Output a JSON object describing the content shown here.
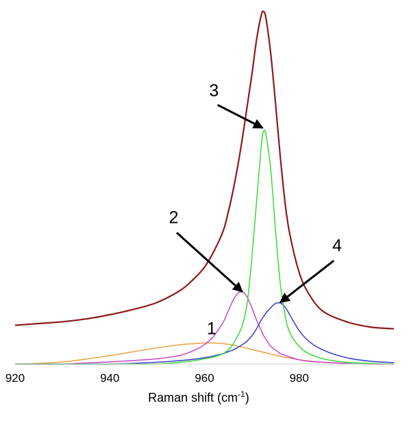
{
  "chart_data": {
    "type": "line",
    "xlabel": "Raman shift (cm",
    "xlabel_sup": "-1",
    "xlabel_close": ")",
    "xlim": [
      920,
      1000
    ],
    "ylim": [
      0,
      1
    ],
    "xticks": [
      920,
      940,
      960,
      980
    ],
    "grid": false,
    "legend": "none",
    "x": [
      920,
      925,
      930,
      935,
      940,
      945,
      950,
      955,
      958,
      960,
      962,
      964,
      965,
      966,
      967,
      968,
      969,
      970,
      971,
      972,
      972.5,
      973,
      974,
      975,
      976,
      977,
      978,
      980,
      982,
      985,
      990,
      995,
      1000
    ],
    "series": [
      {
        "color": "#8b1a1a",
        "values": [
          0.11,
          0.115,
          0.12,
          0.128,
          0.14,
          0.155,
          0.175,
          0.21,
          0.245,
          0.275,
          0.32,
          0.38,
          0.43,
          0.49,
          0.56,
          0.64,
          0.73,
          0.82,
          0.92,
          0.99,
          1.0,
          0.98,
          0.88,
          0.74,
          0.59,
          0.46,
          0.37,
          0.26,
          0.2,
          0.15,
          0.12,
          0.105,
          0.1
        ]
      },
      {
        "color": "#33dd33",
        "values": [
          0.0,
          0.0,
          0.0,
          0.0,
          0.0,
          0.0,
          0.0,
          0.005,
          0.01,
          0.015,
          0.02,
          0.03,
          0.04,
          0.055,
          0.08,
          0.11,
          0.17,
          0.3,
          0.46,
          0.62,
          0.66,
          0.65,
          0.55,
          0.38,
          0.23,
          0.14,
          0.09,
          0.05,
          0.03,
          0.015,
          0.005,
          0.002,
          0.0
        ]
      },
      {
        "color": "#cc44cc",
        "values": [
          0.0,
          0.0,
          0.0,
          0.003,
          0.006,
          0.01,
          0.015,
          0.025,
          0.04,
          0.055,
          0.08,
          0.12,
          0.15,
          0.18,
          0.2,
          0.205,
          0.19,
          0.16,
          0.125,
          0.095,
          0.08,
          0.07,
          0.05,
          0.04,
          0.03,
          0.025,
          0.02,
          0.012,
          0.008,
          0.005,
          0.002,
          0.0,
          0.0
        ]
      },
      {
        "color": "#3a3acc",
        "values": [
          0.0,
          0.0,
          0.0,
          0.0,
          0.0,
          0.002,
          0.005,
          0.01,
          0.014,
          0.018,
          0.023,
          0.03,
          0.035,
          0.04,
          0.047,
          0.055,
          0.065,
          0.08,
          0.1,
          0.125,
          0.135,
          0.145,
          0.16,
          0.172,
          0.173,
          0.162,
          0.14,
          0.095,
          0.065,
          0.04,
          0.018,
          0.008,
          0.004
        ]
      },
      {
        "color": "#e8a040",
        "values": [
          0.0,
          0.002,
          0.006,
          0.014,
          0.024,
          0.035,
          0.046,
          0.055,
          0.058,
          0.06,
          0.06,
          0.058,
          0.056,
          0.054,
          0.051,
          0.048,
          0.045,
          0.041,
          0.038,
          0.035,
          0.033,
          0.032,
          0.028,
          0.025,
          0.022,
          0.019,
          0.017,
          0.012,
          0.009,
          0.005,
          0.002,
          0.0,
          0.0
        ]
      }
    ],
    "annotations": [
      {
        "text": "1",
        "x": 961.5,
        "y": 0.085,
        "arrow": false
      },
      {
        "text": "2",
        "x": 953.5,
        "y": 0.4,
        "arrow": true,
        "tip_x": 968,
        "tip_y": 0.205
      },
      {
        "text": "3",
        "x": 962,
        "y": 0.76,
        "arrow": true,
        "tip_x": 972.3,
        "tip_y": 0.67
      },
      {
        "text": "4",
        "x": 988,
        "y": 0.32,
        "arrow": true,
        "tip_x": 976,
        "tip_y": 0.175
      }
    ]
  }
}
